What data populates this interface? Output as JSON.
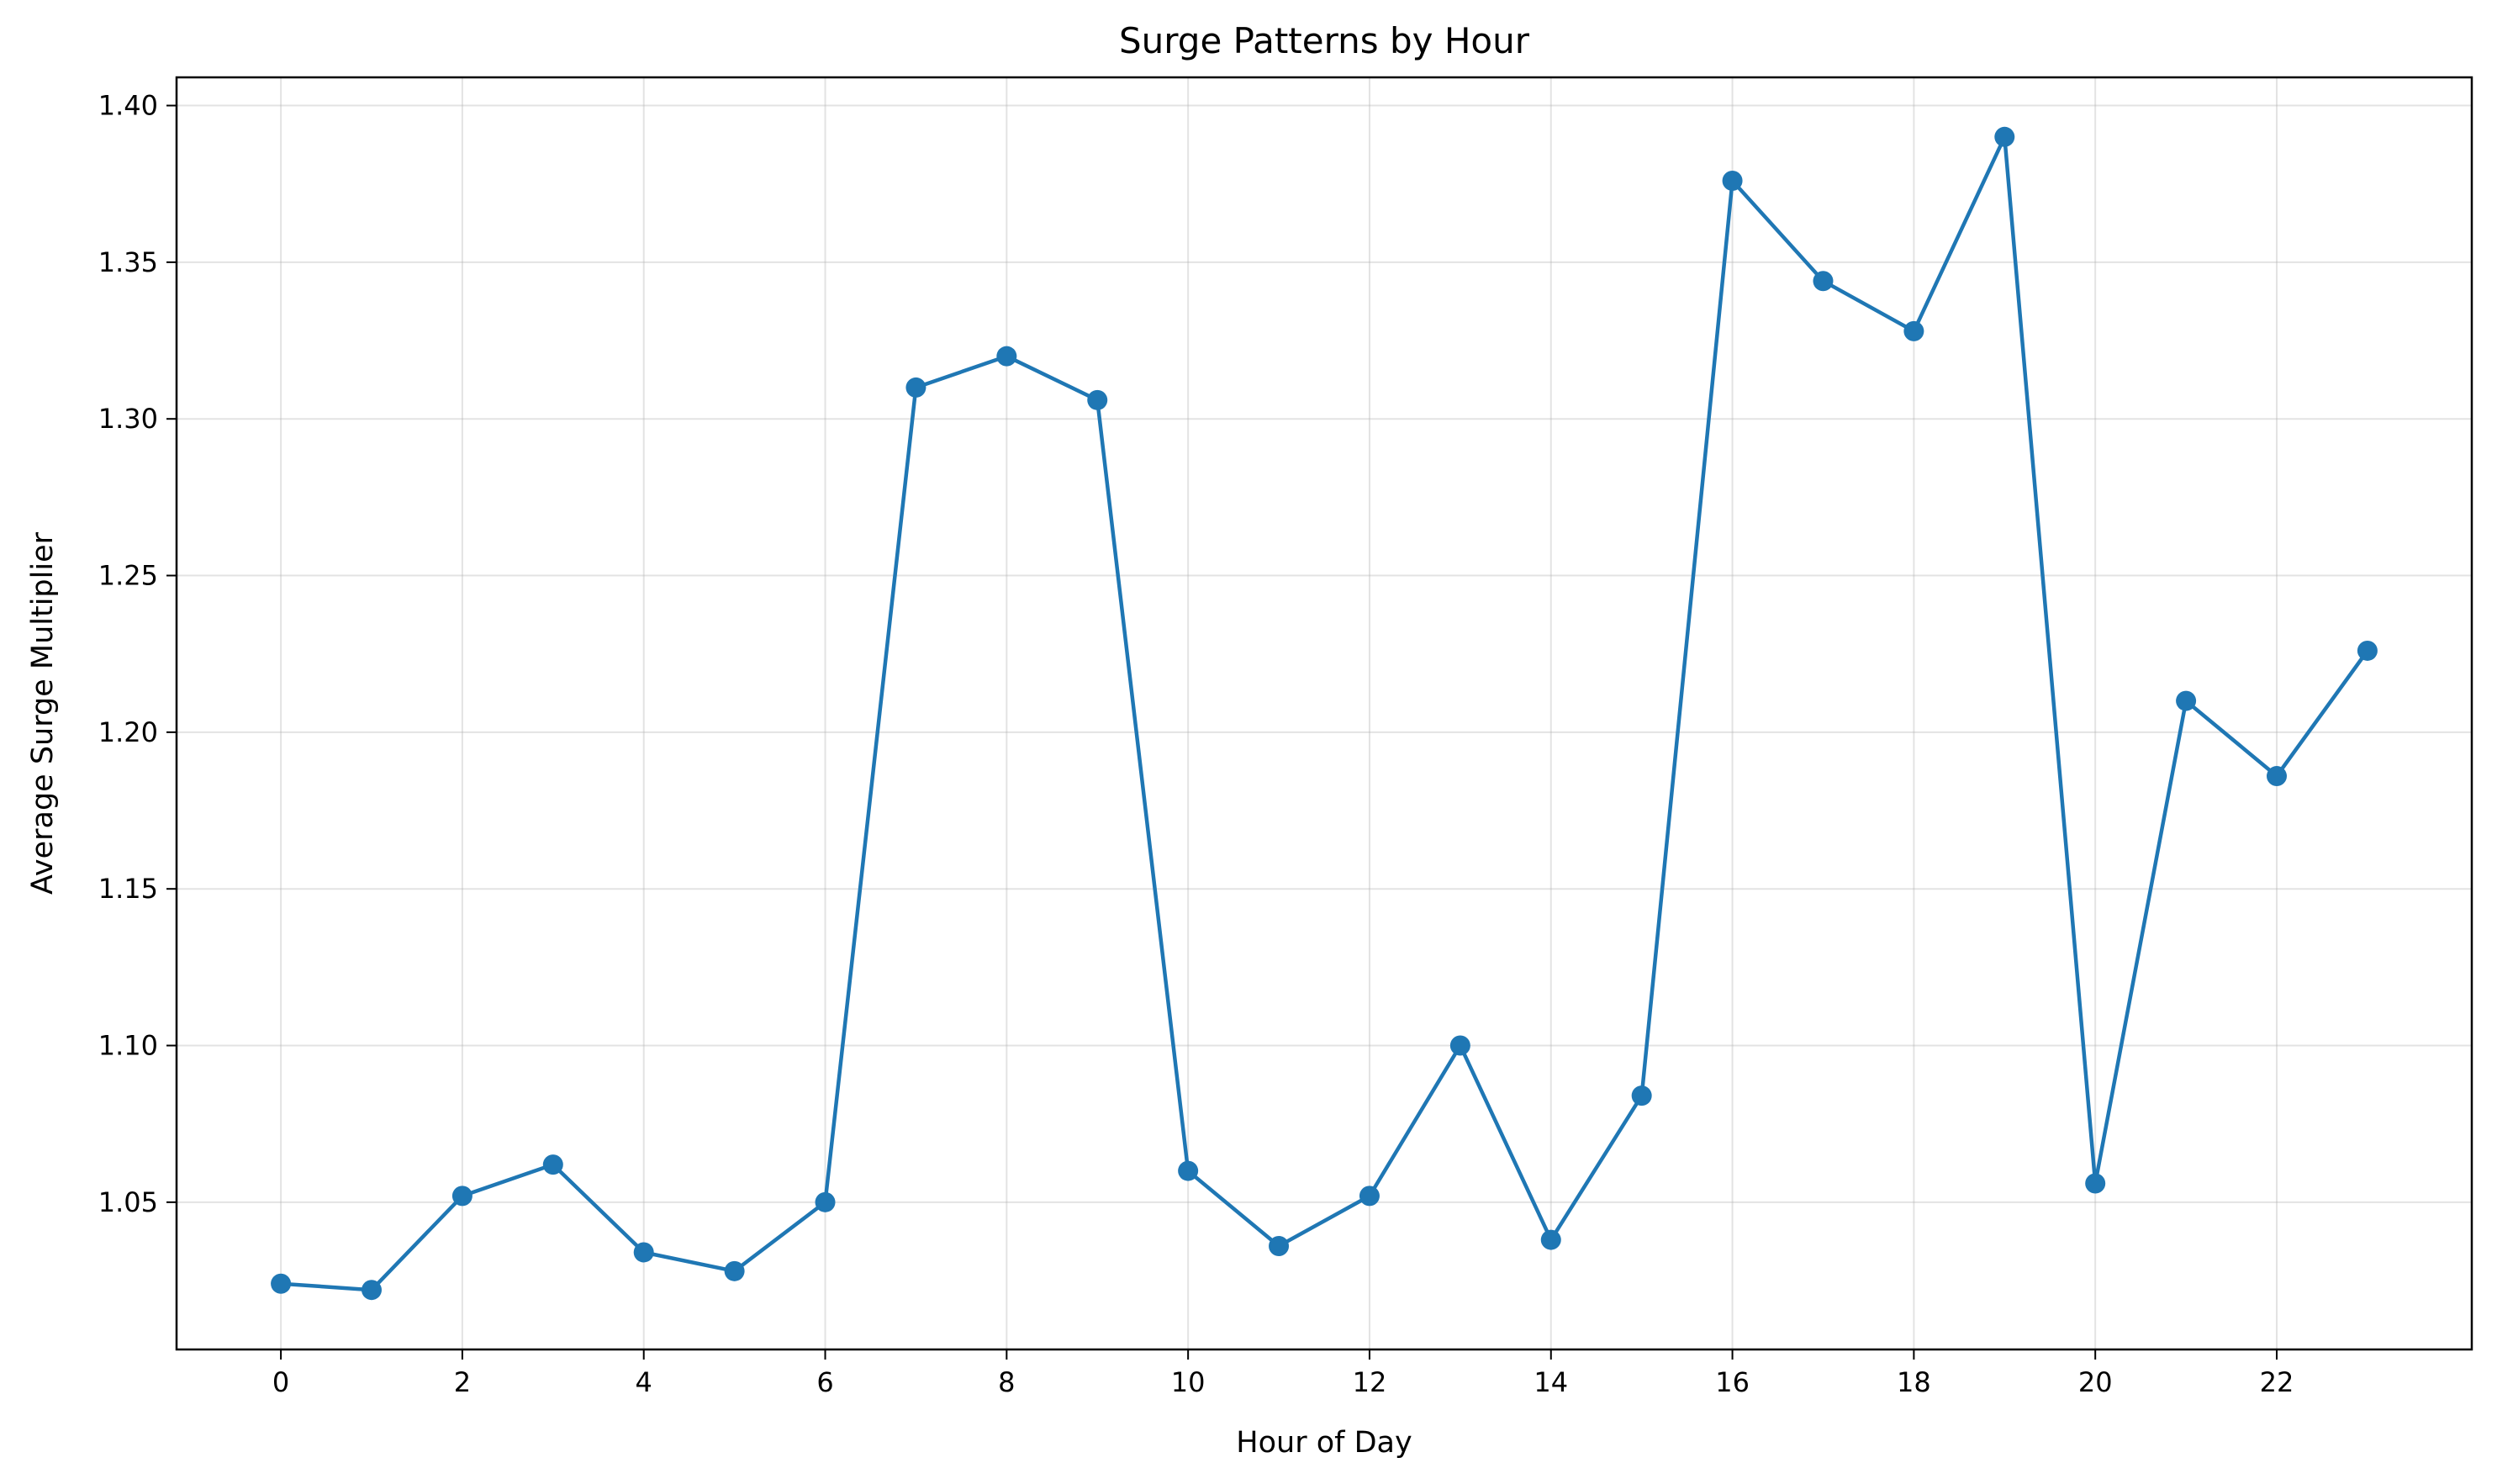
{
  "chart_data": {
    "type": "line",
    "title": "Surge Patterns by Hour",
    "xlabel": "Hour of Day",
    "ylabel": "Average Surge Multiplier",
    "x": [
      0,
      1,
      2,
      3,
      4,
      5,
      6,
      7,
      8,
      9,
      10,
      11,
      12,
      13,
      14,
      15,
      16,
      17,
      18,
      19,
      20,
      21,
      22,
      23
    ],
    "series": [
      {
        "values": [
          1.024,
          1.022,
          1.052,
          1.062,
          1.034,
          1.028,
          1.05,
          1.31,
          1.32,
          1.306,
          1.06,
          1.036,
          1.052,
          1.1,
          1.038,
          1.084,
          1.376,
          1.344,
          1.328,
          1.39,
          1.056,
          1.21,
          1.186,
          1.226
        ],
        "color": "#1f77b4",
        "marker": "circle"
      }
    ],
    "xticks": [
      0,
      2,
      4,
      6,
      8,
      10,
      12,
      14,
      16,
      18,
      20,
      22
    ],
    "xtick_labels": [
      "0",
      "2",
      "4",
      "6",
      "8",
      "10",
      "12",
      "14",
      "16",
      "18",
      "20",
      "22"
    ],
    "yticks": [
      1.05,
      1.1,
      1.15,
      1.2,
      1.25,
      1.3,
      1.35,
      1.4
    ],
    "ytick_labels": [
      "1.05",
      "1.10",
      "1.15",
      "1.20",
      "1.25",
      "1.30",
      "1.35",
      "1.40"
    ],
    "xlim": [
      -1.15,
      24.15
    ],
    "ylim": [
      1.003,
      1.409
    ],
    "grid": true
  }
}
